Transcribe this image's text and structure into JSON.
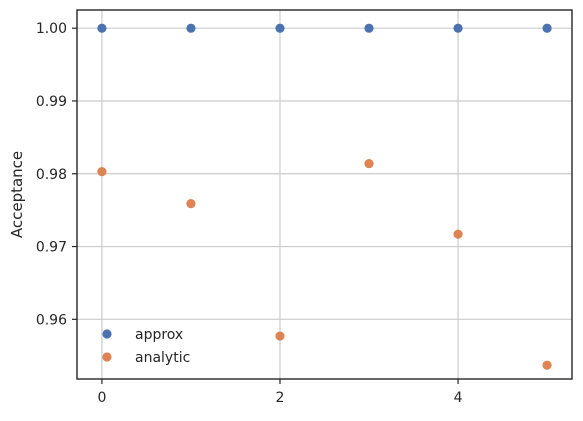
{
  "chart_data": {
    "type": "scatter",
    "title": "",
    "xlabel": "",
    "ylabel": "Acceptance",
    "xlim": [
      -0.28,
      5.28
    ],
    "ylim": [
      0.9518,
      1.0025
    ],
    "xticks": [
      0,
      2,
      4
    ],
    "xtick_labels": [
      "0",
      "2",
      "4"
    ],
    "yticks": [
      0.96,
      0.97,
      0.98,
      0.99,
      1.0
    ],
    "ytick_labels": [
      "0.96",
      "0.97",
      "0.98",
      "0.99",
      "1.00"
    ],
    "grid": true,
    "legend_position": "lower-left",
    "series": [
      {
        "name": "approx",
        "color": "#4c72b0",
        "x": [
          0,
          1,
          2,
          3,
          4,
          5
        ],
        "y": [
          1.0,
          1.0,
          1.0,
          1.0,
          1.0,
          1.0
        ]
      },
      {
        "name": "analytic",
        "color": "#dd8452",
        "x": [
          0,
          1,
          2,
          3,
          4,
          5
        ],
        "y": [
          0.9803,
          0.9759,
          0.9577,
          0.9814,
          0.9717,
          0.9537
        ]
      }
    ]
  }
}
